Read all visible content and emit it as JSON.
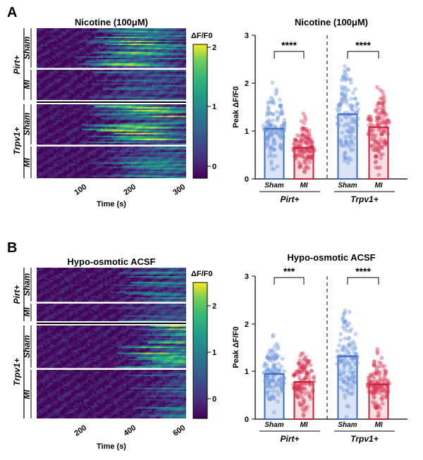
{
  "figure": {
    "panels": [
      {
        "letter": "A",
        "heatmap": {
          "title": "Nicotine (100μM)",
          "colorbar_label": "ΔF/F0",
          "colorbar_ticks": [
            "2",
            "1",
            "0"
          ],
          "colorbar_range": [
            -0.2,
            2.05
          ],
          "time_ticks": [
            "100",
            "200",
            "300"
          ],
          "time_range": [
            0,
            300
          ],
          "xlabel": "Time (s)",
          "groups": [
            {
              "label": "Pirt+",
              "subgroups": [
                "Sham",
                "MI"
              ]
            },
            {
              "label": "Trpv1+",
              "subgroups": [
                "Sham",
                "MI"
              ]
            }
          ]
        },
        "bars": {
          "title": "Nicotine (100μM)",
          "ylabel": "Peak ΔF/F0",
          "yticks": [
            "0",
            "1",
            "2",
            "3"
          ],
          "ylim": [
            0,
            3
          ],
          "categories": [
            "Sham",
            "MI",
            "Sham",
            "MI"
          ],
          "group_labels": [
            "Pirt+",
            "Trpv1+"
          ],
          "significance": [
            "****",
            "****"
          ]
        }
      },
      {
        "letter": "B",
        "heatmap": {
          "title": "Hypo-osmotic ACSF",
          "colorbar_label": "ΔF/F0",
          "colorbar_ticks": [
            "2",
            "1",
            "0"
          ],
          "colorbar_range": [
            -0.35,
            2.4
          ],
          "time_ticks": [
            "200",
            "400",
            "600"
          ],
          "time_range": [
            0,
            600
          ],
          "xlabel": "Time (s)",
          "groups": [
            {
              "label": "Pirt+",
              "subgroups": [
                "Sham",
                "MI"
              ]
            },
            {
              "label": "Trpv1+",
              "subgroups": [
                "Sham",
                "MI"
              ]
            }
          ]
        },
        "bars": {
          "title": "Hypo-osmotic ACSF",
          "ylabel": "Peak ΔF/F0",
          "yticks": [
            "0",
            "1",
            "2",
            "3"
          ],
          "ylim": [
            0,
            3
          ],
          "categories": [
            "Sham",
            "MI",
            "Sham",
            "MI"
          ],
          "group_labels": [
            "Pirt+",
            "Trpv1+"
          ],
          "significance": [
            "***",
            "****"
          ]
        }
      }
    ]
  },
  "colors": {
    "sham_bar": "#3a6cc0",
    "mi_bar": "#c8203a",
    "sham_dots": "#6d95dc",
    "mi_dots": "#d8334f"
  },
  "chart_data": [
    {
      "type": "heatmap",
      "title": "Nicotine (100μM)",
      "xlabel": "Time (s)",
      "x_ticks": [
        100,
        200,
        300
      ],
      "colorbar_label": "ΔF/F0",
      "colorbar_ticks": [
        0,
        1,
        2
      ],
      "rows": [
        "Pirt+ Sham",
        "Pirt+ MI",
        "Trpv1+ Sham",
        "Trpv1+ MI"
      ]
    },
    {
      "type": "bar",
      "title": "Nicotine (100μM)",
      "ylabel": "Peak ΔF/F0",
      "ylim": [
        0,
        3
      ],
      "categories": [
        "Sham",
        "MI",
        "Sham",
        "MI"
      ],
      "groups": [
        "Pirt+",
        "Pirt+",
        "Trpv1+",
        "Trpv1+"
      ],
      "values": [
        1.05,
        0.65,
        1.35,
        1.08
      ],
      "significance": [
        {
          "pair": [
            0,
            1
          ],
          "label": "****"
        },
        {
          "pair": [
            2,
            3
          ],
          "label": "****"
        }
      ]
    },
    {
      "type": "heatmap",
      "title": "Hypo-osmotic ACSF",
      "xlabel": "Time (s)",
      "x_ticks": [
        200,
        400,
        600
      ],
      "colorbar_label": "ΔF/F0",
      "colorbar_ticks": [
        0,
        1,
        2
      ],
      "rows": [
        "Pirt+ Sham",
        "Pirt+ MI",
        "Trpv1+ Sham",
        "Trpv1+ MI"
      ]
    },
    {
      "type": "bar",
      "title": "Hypo-osmotic ACSF",
      "ylabel": "Peak ΔF/F0",
      "ylim": [
        0,
        3
      ],
      "categories": [
        "Sham",
        "MI",
        "Sham",
        "MI"
      ],
      "groups": [
        "Pirt+",
        "Pirt+",
        "Trpv1+",
        "Trpv1+"
      ],
      "values": [
        0.95,
        0.78,
        1.32,
        0.73
      ],
      "significance": [
        {
          "pair": [
            0,
            1
          ],
          "label": "***"
        },
        {
          "pair": [
            2,
            3
          ],
          "label": "****"
        }
      ]
    }
  ]
}
